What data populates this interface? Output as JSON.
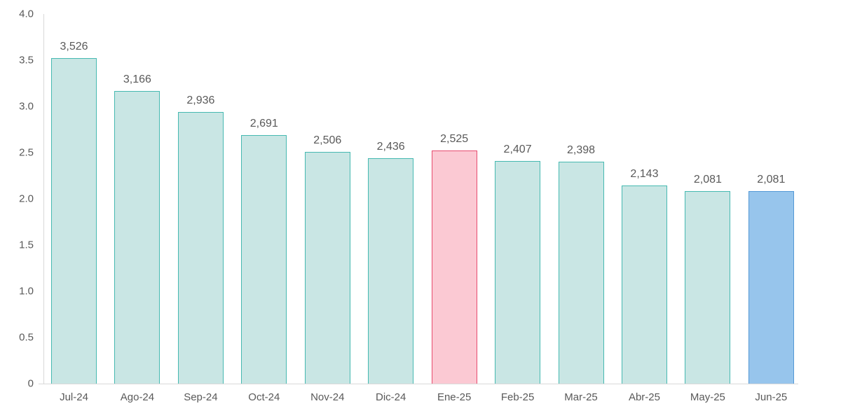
{
  "chart_data": {
    "type": "bar",
    "title": "",
    "categories": [
      "Jul-24",
      "Ago-24",
      "Sep-24",
      "Oct-24",
      "Nov-24",
      "Dic-24",
      "Ene-25",
      "Feb-25",
      "Mar-25",
      "Abr-25",
      "May-25",
      "Jun-25"
    ],
    "values": [
      3.526,
      3.166,
      2.936,
      2.691,
      2.506,
      2.436,
      2.525,
      2.407,
      2.398,
      2.143,
      2.081,
      2.081
    ],
    "data_labels": [
      "3,526",
      "3,166",
      "2,936",
      "2,691",
      "2,506",
      "2,436",
      "2,525",
      "2,407",
      "2,398",
      "2,143",
      "2,081",
      "2,081"
    ],
    "bar_styles": [
      "teal",
      "teal",
      "teal",
      "teal",
      "teal",
      "teal",
      "pink",
      "teal",
      "teal",
      "teal",
      "teal",
      "blue"
    ],
    "xlabel": "",
    "ylabel": "",
    "ylim": [
      0,
      4
    ],
    "ytick_labels": [
      "0",
      "0.5",
      "1.0",
      "1.5",
      "2.0",
      "2.5",
      "3.0",
      "3.5",
      "4.0"
    ],
    "grid": false,
    "legend": false,
    "colors": {
      "teal_fill": "#C9E6E4",
      "teal_border": "#46B9B1",
      "pink_fill": "#FBC9D3",
      "pink_border": "#E74C6F",
      "blue_fill": "#97C5EC",
      "blue_border": "#5499D6",
      "axis_line": "#D9D9D9",
      "tick_label": "#595959",
      "data_label": "#595959"
    }
  }
}
